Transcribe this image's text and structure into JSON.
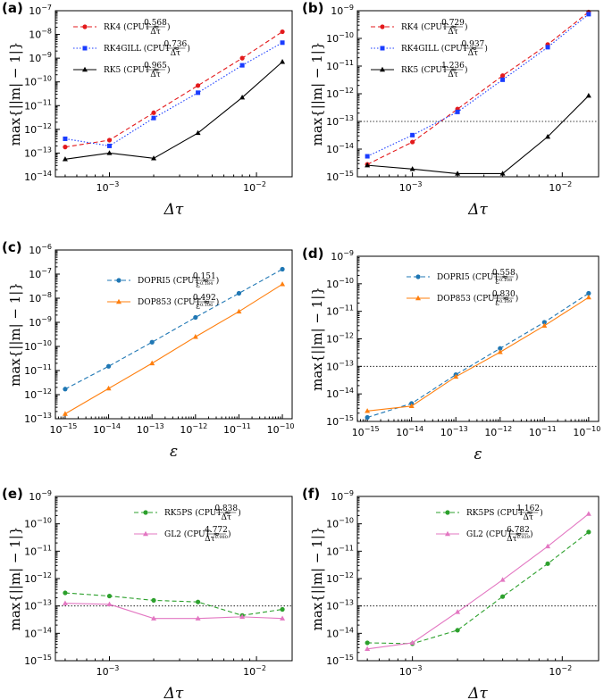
{
  "labels": {
    "cput_prefix": "CPUT ≈",
    "ylabel": "max{||m| − 1|}",
    "xlabel_dtau": "Δτ",
    "xlabel_eps": "ε",
    "dtau_num_denominator": "Δτ"
  },
  "chart_data": [
    {
      "panel": "(a)",
      "type": "line",
      "xscale": "log",
      "yscale": "log",
      "xlabel": "Δτ",
      "ylabel": "max{||m| − 1|}",
      "xlim": [
        0.0005,
        0.015
      ],
      "ylim": [
        1e-14,
        1e-07
      ],
      "xticks": [
        {
          "v": 0.001,
          "m": "10",
          "e": "-3"
        },
        {
          "v": 0.01,
          "m": "10",
          "e": "-2"
        }
      ],
      "yticks": [
        {
          "v": 1e-14,
          "m": "10",
          "e": "-14"
        },
        {
          "v": 1e-13,
          "m": "10",
          "e": "-13"
        },
        {
          "v": 1e-12,
          "m": "10",
          "e": "-12"
        },
        {
          "v": 1e-11,
          "m": "10",
          "e": "-11"
        },
        {
          "v": 1e-10,
          "m": "10",
          "e": "-10"
        },
        {
          "v": 1e-09,
          "m": "10",
          "e": "-9"
        },
        {
          "v": 1e-08,
          "m": "10",
          "e": "-8"
        },
        {
          "v": 1e-07,
          "m": "10",
          "e": "-7"
        }
      ],
      "reference_line": null,
      "series": [
        {
          "name": "RK4",
          "cput_num": "0.568",
          "cput_den": "Δτ",
          "color": "#e31a1c",
          "marker": "circle",
          "dash": "5 3",
          "x": [
            0.0005,
            0.001,
            0.002,
            0.004,
            0.008,
            0.015
          ],
          "y": [
            1.8e-13,
            3.5e-13,
            5e-12,
            7e-11,
            1e-09,
            1.3e-08
          ]
        },
        {
          "name": "RK4GILL",
          "cput_num": "0.736",
          "cput_den": "Δτ",
          "color": "#1a3cff",
          "marker": "square",
          "dash": "1.5 2",
          "x": [
            0.0005,
            0.001,
            0.002,
            0.004,
            0.008,
            0.015
          ],
          "y": [
            4e-13,
            2e-13,
            3e-12,
            3.5e-11,
            5e-10,
            4.5e-09
          ]
        },
        {
          "name": "RK5",
          "cput_num": "0.965",
          "cput_den": "Δτ",
          "color": "#000000",
          "marker": "triangle",
          "dash": "",
          "x": [
            0.0005,
            0.001,
            0.002,
            0.004,
            0.008,
            0.015
          ],
          "y": [
            5.5e-14,
            1e-13,
            6e-14,
            7e-13,
            2.2e-11,
            7e-10
          ]
        }
      ]
    },
    {
      "panel": "(b)",
      "type": "line",
      "xscale": "log",
      "yscale": "log",
      "xlabel": "Δτ",
      "ylabel": "max{||m| − 1|}",
      "xlim": [
        0.0005,
        0.015
      ],
      "ylim": [
        1e-15,
        1e-09
      ],
      "xticks": [
        {
          "v": 0.001,
          "m": "10",
          "e": "-3"
        },
        {
          "v": 0.01,
          "m": "10",
          "e": "-2"
        }
      ],
      "yticks": [
        {
          "v": 1e-15,
          "m": "10",
          "e": "-15"
        },
        {
          "v": 1e-14,
          "m": "10",
          "e": "-14"
        },
        {
          "v": 1e-13,
          "m": "10",
          "e": "-13"
        },
        {
          "v": 1e-12,
          "m": "10",
          "e": "-12"
        },
        {
          "v": 1e-11,
          "m": "10",
          "e": "-11"
        },
        {
          "v": 1e-10,
          "m": "10",
          "e": "-10"
        },
        {
          "v": 1e-09,
          "m": "10",
          "e": "-9"
        }
      ],
      "reference_line": 1e-13,
      "series": [
        {
          "name": "RK4",
          "cput_num": "0.729",
          "cput_den": "Δτ",
          "color": "#e31a1c",
          "marker": "circle",
          "dash": "5 3",
          "x": [
            0.0005,
            0.001,
            0.002,
            0.004,
            0.008,
            0.015
          ],
          "y": [
            2.8e-15,
            1.8e-14,
            2.8e-13,
            4.5e-12,
            6e-11,
            9e-10
          ]
        },
        {
          "name": "RK4GILL",
          "cput_num": "0.937",
          "cput_den": "Δτ",
          "color": "#1a3cff",
          "marker": "square",
          "dash": "1.5 2",
          "x": [
            0.0005,
            0.001,
            0.002,
            0.004,
            0.008,
            0.015
          ],
          "y": [
            5.5e-15,
            3.2e-14,
            2.2e-13,
            3.2e-12,
            4.8e-11,
            7.5e-10
          ]
        },
        {
          "name": "RK5",
          "cput_num": "1.236",
          "cput_den": "Δτ",
          "color": "#000000",
          "marker": "triangle",
          "dash": "",
          "x": [
            0.0005,
            0.001,
            0.002,
            0.004,
            0.008,
            0.015
          ],
          "y": [
            2.6e-15,
            1.9e-15,
            1.3e-15,
            1.3e-15,
            2.8e-14,
            8.5e-13
          ]
        }
      ]
    },
    {
      "panel": "(c)",
      "type": "line",
      "xscale": "log",
      "yscale": "log",
      "xlabel": "ε",
      "ylabel": "max{||m| − 1|}",
      "xlim": [
        1e-15,
        1e-10
      ],
      "ylim": [
        1e-13,
        1e-06
      ],
      "xticks": [
        {
          "v": 1e-15,
          "m": "10",
          "e": "-15"
        },
        {
          "v": 1e-14,
          "m": "10",
          "e": "-14"
        },
        {
          "v": 1e-13,
          "m": "10",
          "e": "-13"
        },
        {
          "v": 1e-12,
          "m": "10",
          "e": "-12"
        },
        {
          "v": 1e-11,
          "m": "10",
          "e": "-11"
        },
        {
          "v": 1e-10,
          "m": "10",
          "e": "-10"
        }
      ],
      "yticks": [
        {
          "v": 1e-13,
          "m": "10",
          "e": "-13"
        },
        {
          "v": 1e-12,
          "m": "10",
          "e": "-12"
        },
        {
          "v": 1e-11,
          "m": "10",
          "e": "-11"
        },
        {
          "v": 1e-10,
          "m": "10",
          "e": "-10"
        },
        {
          "v": 1e-09,
          "m": "10",
          "e": "-9"
        },
        {
          "v": 1e-08,
          "m": "10",
          "e": "-8"
        },
        {
          "v": 1e-07,
          "m": "10",
          "e": "-7"
        },
        {
          "v": 1e-06,
          "m": "10",
          "e": "-6"
        }
      ],
      "reference_line": null,
      "series": [
        {
          "name": "DOPRI5",
          "cput_num": "0.151",
          "cput_den": "ε",
          "cput_den_exp": "0.184",
          "color": "#1f77b4",
          "marker": "circle",
          "dash": "5 3",
          "x": [
            1e-15,
            1e-14,
            1e-13,
            1e-12,
            1e-11,
            1e-10
          ],
          "y": [
            1.7e-12,
            1.5e-11,
            1.5e-10,
            1.6e-09,
            1.6e-08,
            1.6e-07
          ]
        },
        {
          "name": "DOP853",
          "cput_num": "0.492",
          "cput_den": "ε",
          "cput_den_exp": "0.106",
          "color": "#ff7f0e",
          "marker": "triangle",
          "dash": "",
          "x": [
            1e-15,
            1e-14,
            1e-13,
            1e-12,
            1e-11,
            1e-10
          ],
          "y": [
            1.6e-13,
            1.8e-12,
            2e-11,
            2.5e-10,
            2.8e-09,
            3.8e-08
          ]
        }
      ]
    },
    {
      "panel": "(d)",
      "type": "line",
      "xscale": "log",
      "yscale": "log",
      "xlabel": "ε",
      "ylabel": "max{||m| − 1|}",
      "xlim": [
        1e-15,
        1e-10
      ],
      "ylim": [
        1e-15,
        1e-09
      ],
      "xticks": [
        {
          "v": 1e-15,
          "m": "10",
          "e": "-15"
        },
        {
          "v": 1e-14,
          "m": "10",
          "e": "-14"
        },
        {
          "v": 1e-13,
          "m": "10",
          "e": "-13"
        },
        {
          "v": 1e-12,
          "m": "10",
          "e": "-12"
        },
        {
          "v": 1e-11,
          "m": "10",
          "e": "-11"
        },
        {
          "v": 1e-10,
          "m": "10",
          "e": "-10"
        }
      ],
      "yticks": [
        {
          "v": 1e-15,
          "m": "10",
          "e": "-15"
        },
        {
          "v": 1e-14,
          "m": "10",
          "e": "-14"
        },
        {
          "v": 1e-13,
          "m": "10",
          "e": "-13"
        },
        {
          "v": 1e-12,
          "m": "10",
          "e": "-12"
        },
        {
          "v": 1e-11,
          "m": "10",
          "e": "-11"
        },
        {
          "v": 1e-10,
          "m": "10",
          "e": "-10"
        },
        {
          "v": 1e-09,
          "m": "10",
          "e": "-9"
        }
      ],
      "reference_line": 1e-13,
      "series": [
        {
          "name": "DOPRI5",
          "cput_num": "0.558",
          "cput_den": "ε",
          "cput_den_exp": "0.108",
          "color": "#1f77b4",
          "marker": "circle",
          "dash": "5 3",
          "x": [
            1e-15,
            1e-14,
            1e-13,
            1e-12,
            1e-11,
            1e-10
          ],
          "y": [
            1.4e-15,
            4.5e-15,
            5e-14,
            4.5e-13,
            4e-12,
            4.5e-11
          ]
        },
        {
          "name": "DOP853",
          "cput_num": "0.830",
          "cput_den": "ε",
          "cput_den_exp": "0.109",
          "color": "#ff7f0e",
          "marker": "triangle",
          "dash": "",
          "x": [
            1e-15,
            1e-14,
            1e-13,
            1e-12,
            1e-11,
            1e-10
          ],
          "y": [
            2.4e-15,
            3.6e-15,
            4.2e-14,
            3.3e-13,
            3e-12,
            3.2e-11
          ]
        }
      ]
    },
    {
      "panel": "(e)",
      "type": "line",
      "xscale": "log",
      "yscale": "log",
      "xlabel": "Δτ",
      "ylabel": "max{||m| − 1|}",
      "xlim": [
        0.0005,
        0.015
      ],
      "ylim": [
        1e-15,
        1e-09
      ],
      "xticks": [
        {
          "v": 0.001,
          "m": "10",
          "e": "-3"
        },
        {
          "v": 0.01,
          "m": "10",
          "e": "-2"
        }
      ],
      "yticks": [
        {
          "v": 1e-15,
          "m": "10",
          "e": "-15"
        },
        {
          "v": 1e-14,
          "m": "10",
          "e": "-14"
        },
        {
          "v": 1e-13,
          "m": "10",
          "e": "-13"
        },
        {
          "v": 1e-12,
          "m": "10",
          "e": "-12"
        },
        {
          "v": 1e-11,
          "m": "10",
          "e": "-11"
        },
        {
          "v": 1e-10,
          "m": "10",
          "e": "-10"
        },
        {
          "v": 1e-09,
          "m": "10",
          "e": "-9"
        }
      ],
      "reference_line": 1e-13,
      "series": [
        {
          "name": "RK5PS",
          "cput_num": "0.838",
          "cput_den": "Δτ",
          "color": "#2ca02c",
          "marker": "circle",
          "dash": "5 3",
          "x": [
            0.0005,
            0.001,
            0.002,
            0.004,
            0.008,
            0.015
          ],
          "y": [
            3e-13,
            2.3e-13,
            1.6e-13,
            1.4e-13,
            4.5e-14,
            7.5e-14
          ]
        },
        {
          "name": "GL2",
          "cput_num": "4.772",
          "cput_den": "Δτ",
          "cput_den_exp": "0.980",
          "color": "#e377c2",
          "marker": "triangle",
          "dash": "",
          "x": [
            0.0005,
            0.001,
            0.002,
            0.004,
            0.008,
            0.015
          ],
          "y": [
            1.25e-13,
            1.15e-13,
            3.5e-14,
            3.5e-14,
            4e-14,
            3.5e-14
          ]
        }
      ]
    },
    {
      "panel": "(f)",
      "type": "line",
      "xscale": "log",
      "yscale": "log",
      "xlabel": "Δτ",
      "ylabel": "max{||m| − 1|}",
      "xlim": [
        0.0005,
        0.015
      ],
      "ylim": [
        1e-15,
        1e-09
      ],
      "xticks": [
        {
          "v": 0.001,
          "m": "10",
          "e": "-3"
        },
        {
          "v": 0.01,
          "m": "10",
          "e": "-2"
        }
      ],
      "yticks": [
        {
          "v": 1e-15,
          "m": "10",
          "e": "-15"
        },
        {
          "v": 1e-14,
          "m": "10",
          "e": "-14"
        },
        {
          "v": 1e-13,
          "m": "10",
          "e": "-13"
        },
        {
          "v": 1e-12,
          "m": "10",
          "e": "-12"
        },
        {
          "v": 1e-11,
          "m": "10",
          "e": "-11"
        },
        {
          "v": 1e-10,
          "m": "10",
          "e": "-10"
        },
        {
          "v": 1e-09,
          "m": "10",
          "e": "-9"
        }
      ],
      "reference_line": 1e-13,
      "series": [
        {
          "name": "RK5PS",
          "cput_num": "1.162",
          "cput_den": "Δτ",
          "color": "#2ca02c",
          "marker": "circle",
          "dash": "5 3",
          "x": [
            0.0005,
            0.001,
            0.002,
            0.004,
            0.008,
            0.015
          ],
          "y": [
            4.5e-15,
            4.2e-15,
            1.3e-14,
            2.2e-13,
            3.5e-12,
            5e-11
          ]
        },
        {
          "name": "GL2",
          "cput_num": "6.782",
          "cput_den": "Δτ",
          "cput_den_exp": "0.939",
          "color": "#e377c2",
          "marker": "triangle",
          "dash": "",
          "x": [
            0.0005,
            0.001,
            0.002,
            0.004,
            0.008,
            0.015
          ],
          "y": [
            2.7e-15,
            4.5e-15,
            6e-14,
            9e-13,
            1.5e-11,
            2.3e-10
          ]
        }
      ]
    }
  ]
}
